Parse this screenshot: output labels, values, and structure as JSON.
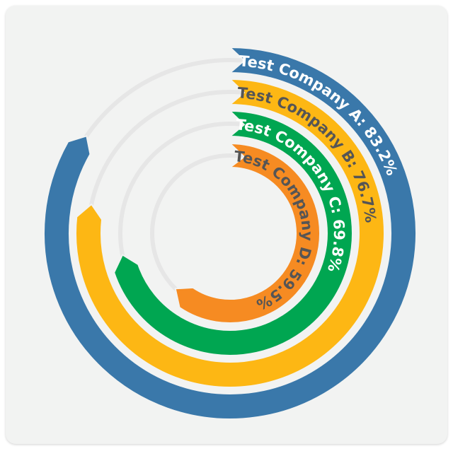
{
  "chart_data": {
    "type": "radial-bar",
    "max_value": 100,
    "series": [
      {
        "name": "Test Company A",
        "value": 83.2,
        "label": "Test Company A: 83.2%",
        "color": "#3a78aa",
        "text_color": "#ffffff"
      },
      {
        "name": "Test Company B",
        "value": 76.7,
        "label": "Test Company B: 76.7%",
        "color": "#fdb714",
        "text_color": "#555555"
      },
      {
        "name": "Test Company C",
        "value": 69.8,
        "label": "Test Company C: 69.8%",
        "color": "#00a651",
        "text_color": "#ffffff"
      },
      {
        "name": "Test Company D",
        "value": 59.5,
        "label": "Test Company D: 59.5%",
        "color": "#f68b22",
        "text_color": "#555555"
      }
    ],
    "track_color": "#e6e6e6",
    "background_color": "#f2f3f2"
  }
}
